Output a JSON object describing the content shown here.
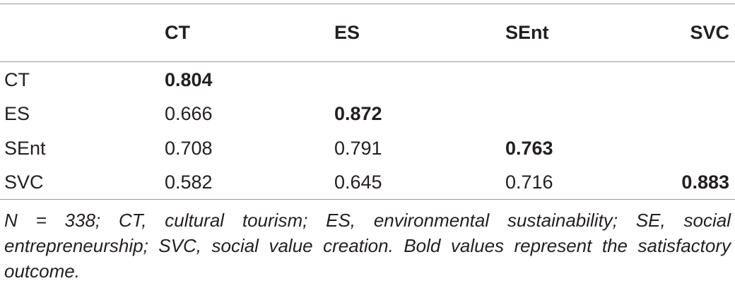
{
  "table": {
    "columns": [
      "",
      "CT",
      "ES",
      "SEnt",
      "SVC"
    ],
    "rows": [
      {
        "label": "CT",
        "cells": [
          "0.804",
          "",
          "",
          ""
        ]
      },
      {
        "label": "ES",
        "cells": [
          "0.666",
          "0.872",
          "",
          ""
        ]
      },
      {
        "label": "SEnt",
        "cells": [
          "0.708",
          "0.791",
          "0.763",
          ""
        ]
      },
      {
        "label": "SVC",
        "cells": [
          "0.582",
          "0.645",
          "0.716",
          "0.883"
        ]
      }
    ]
  },
  "note": "N = 338; CT, cultural tourism; ES, environmental sustainability; SE, social entrepreneurship; SVC, social value creation. Bold values represent the satisfactory outcome."
}
